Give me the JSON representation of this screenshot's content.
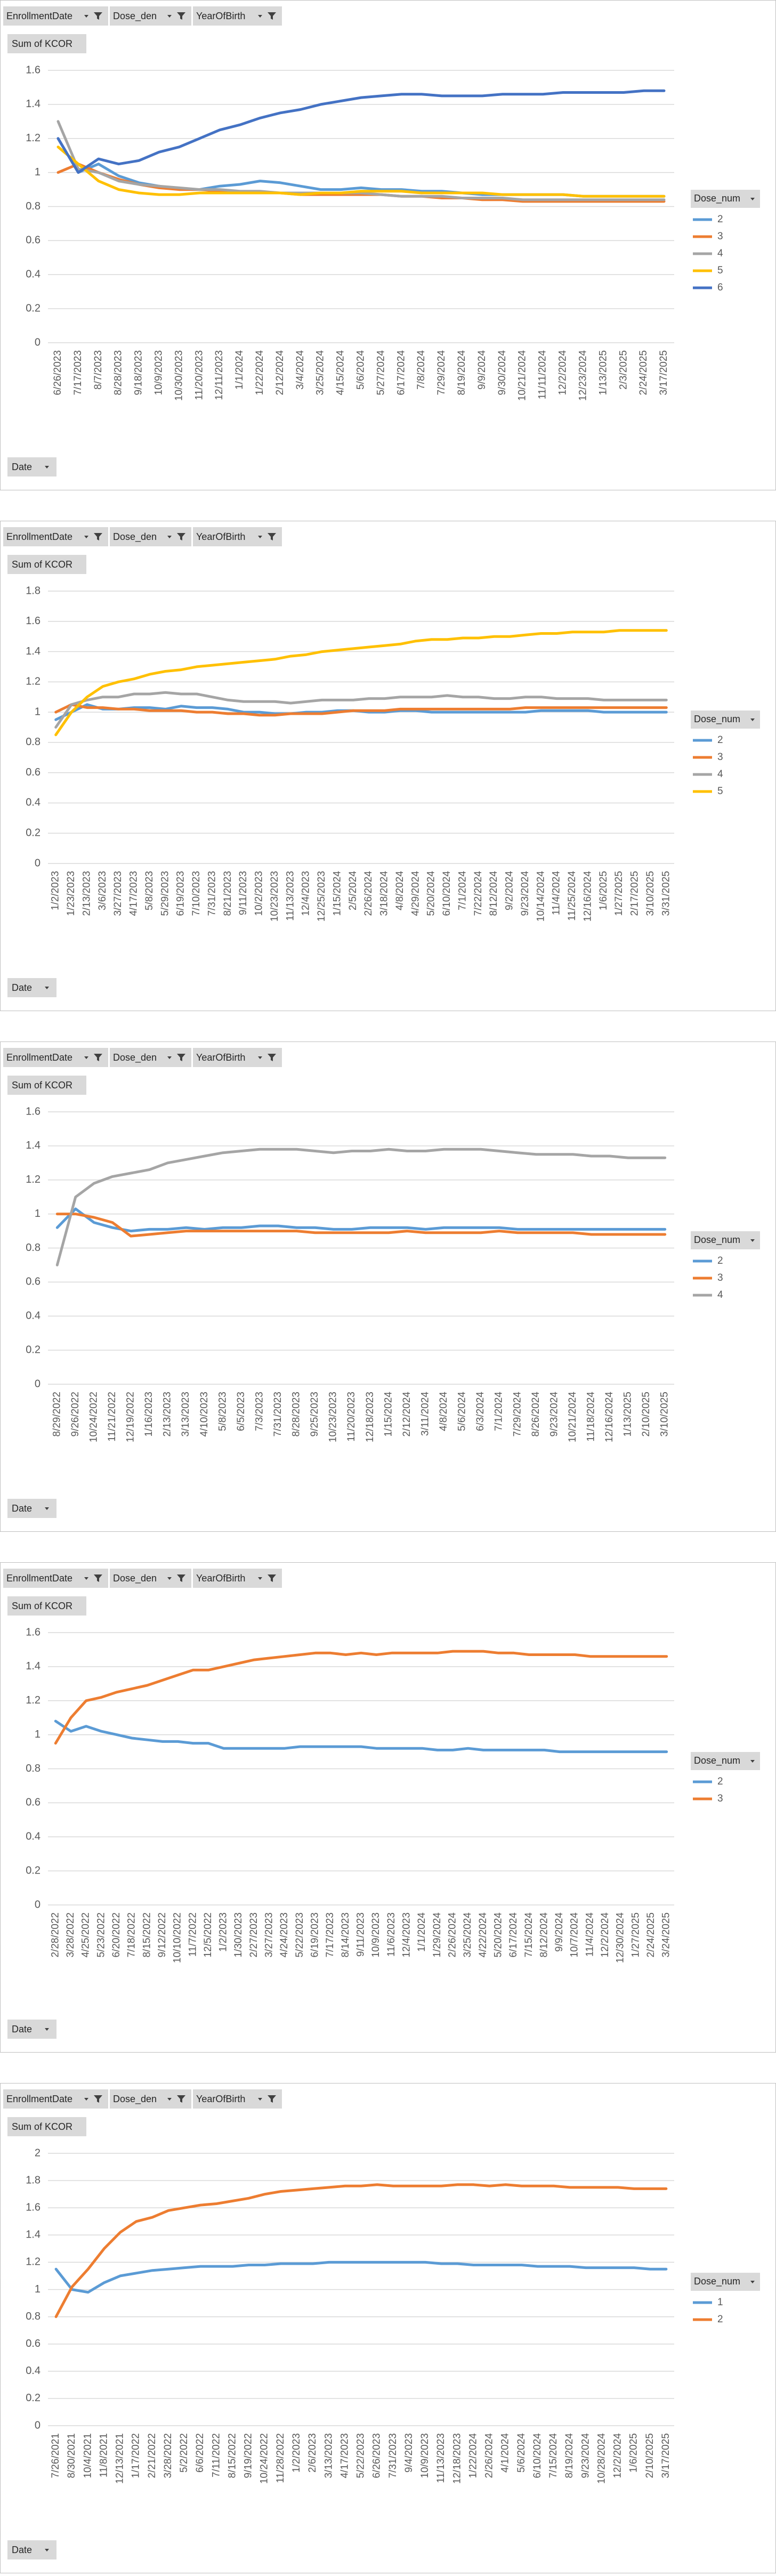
{
  "chart_data": [
    {
      "type": "line",
      "filters": [
        "EnrollmentDate",
        "Dose_den",
        "YearOfBirth"
      ],
      "value_field": "Sum of KCOR",
      "axis_field": "Date",
      "legend_title": "Dose_num",
      "legend": "right",
      "grid": true,
      "categories": [
        "6/26/2023",
        "7/17/2023",
        "8/7/2023",
        "8/28/2023",
        "9/18/2023",
        "10/9/2023",
        "10/30/2023",
        "11/20/2023",
        "12/11/2023",
        "1/1/2024",
        "1/22/2024",
        "2/12/2024",
        "3/4/2024",
        "3/25/2024",
        "4/15/2024",
        "5/6/2024",
        "5/27/2024",
        "6/17/2024",
        "7/8/2024",
        "7/29/2024",
        "8/19/2024",
        "9/9/2024",
        "9/30/2024",
        "10/21/2024",
        "11/11/2024",
        "12/2/2024",
        "12/23/2024",
        "1/13/2025",
        "2/3/2025",
        "2/24/2025",
        "3/17/2025"
      ],
      "ylim": [
        0,
        1.6
      ],
      "yticks": [
        0,
        0.2,
        0.4,
        0.6,
        0.8,
        1,
        1.2,
        1.4,
        1.6
      ],
      "series": [
        {
          "name": "2",
          "color": "#5b9bd5",
          "values": [
            1.2,
            1.0,
            1.05,
            0.98,
            0.94,
            0.92,
            0.9,
            0.9,
            0.92,
            0.93,
            0.95,
            0.94,
            0.92,
            0.9,
            0.9,
            0.91,
            0.9,
            0.9,
            0.89,
            0.89,
            0.88,
            0.87,
            0.87,
            0.87,
            0.87,
            0.87,
            0.86,
            0.86,
            0.86,
            0.86,
            0.86
          ]
        },
        {
          "name": "3",
          "color": "#ed7d31",
          "values": [
            1.0,
            1.05,
            1.0,
            0.96,
            0.93,
            0.91,
            0.9,
            0.9,
            0.89,
            0.88,
            0.88,
            0.88,
            0.87,
            0.87,
            0.87,
            0.87,
            0.87,
            0.86,
            0.86,
            0.85,
            0.85,
            0.84,
            0.84,
            0.83,
            0.83,
            0.83,
            0.83,
            0.83,
            0.83,
            0.83,
            0.83
          ]
        },
        {
          "name": "4",
          "color": "#a5a5a5",
          "values": [
            1.3,
            1.02,
            1.0,
            0.95,
            0.93,
            0.92,
            0.91,
            0.9,
            0.9,
            0.89,
            0.89,
            0.88,
            0.88,
            0.88,
            0.88,
            0.88,
            0.87,
            0.86,
            0.86,
            0.86,
            0.85,
            0.85,
            0.85,
            0.84,
            0.84,
            0.84,
            0.84,
            0.84,
            0.84,
            0.84,
            0.84
          ]
        },
        {
          "name": "5",
          "color": "#ffc000",
          "values": [
            1.15,
            1.05,
            0.95,
            0.9,
            0.88,
            0.87,
            0.87,
            0.88,
            0.88,
            0.88,
            0.88,
            0.88,
            0.87,
            0.88,
            0.88,
            0.89,
            0.89,
            0.89,
            0.88,
            0.88,
            0.88,
            0.88,
            0.87,
            0.87,
            0.87,
            0.87,
            0.86,
            0.86,
            0.86,
            0.86,
            0.86
          ]
        },
        {
          "name": "6",
          "color": "#4472c4",
          "values": [
            1.2,
            1.0,
            1.08,
            1.05,
            1.07,
            1.12,
            1.15,
            1.2,
            1.25,
            1.28,
            1.32,
            1.35,
            1.37,
            1.4,
            1.42,
            1.44,
            1.45,
            1.46,
            1.46,
            1.45,
            1.45,
            1.45,
            1.46,
            1.46,
            1.46,
            1.47,
            1.47,
            1.47,
            1.47,
            1.48,
            1.48
          ]
        }
      ]
    },
    {
      "type": "line",
      "filters": [
        "EnrollmentDate",
        "Dose_den",
        "YearOfBirth"
      ],
      "value_field": "Sum of KCOR",
      "axis_field": "Date",
      "legend_title": "Dose_num",
      "legend": "right",
      "grid": true,
      "categories": [
        "1/2/2023",
        "1/23/2023",
        "2/13/2023",
        "3/6/2023",
        "3/27/2023",
        "4/17/2023",
        "5/8/2023",
        "5/29/2023",
        "6/19/2023",
        "7/10/2023",
        "7/31/2023",
        "8/21/2023",
        "9/11/2023",
        "10/2/2023",
        "10/23/2023",
        "11/13/2023",
        "12/4/2023",
        "12/25/2023",
        "1/15/2024",
        "2/5/2024",
        "2/26/2024",
        "3/18/2024",
        "4/8/2024",
        "4/29/2024",
        "5/20/2024",
        "6/10/2024",
        "7/1/2024",
        "7/22/2024",
        "8/12/2024",
        "9/2/2024",
        "9/23/2024",
        "10/14/2024",
        "11/4/2024",
        "11/25/2024",
        "12/16/2024",
        "1/6/2025",
        "1/27/2025",
        "2/17/2025",
        "3/10/2025",
        "3/31/2025"
      ],
      "ylim": [
        0,
        1.8
      ],
      "yticks": [
        0,
        0.2,
        0.4,
        0.6,
        0.8,
        1,
        1.2,
        1.4,
        1.6,
        1.8
      ],
      "series": [
        {
          "name": "2",
          "color": "#5b9bd5",
          "values": [
            0.95,
            1.0,
            1.05,
            1.02,
            1.02,
            1.03,
            1.03,
            1.02,
            1.04,
            1.03,
            1.03,
            1.02,
            1.0,
            1.0,
            0.99,
            0.99,
            1.0,
            1.0,
            1.01,
            1.01,
            1.0,
            1.0,
            1.01,
            1.01,
            1.0,
            1.0,
            1.0,
            1.0,
            1.0,
            1.0,
            1.0,
            1.01,
            1.01,
            1.01,
            1.01,
            1.0,
            1.0,
            1.0,
            1.0,
            1.0
          ]
        },
        {
          "name": "3",
          "color": "#ed7d31",
          "values": [
            1.0,
            1.05,
            1.03,
            1.03,
            1.02,
            1.02,
            1.01,
            1.01,
            1.01,
            1.0,
            1.0,
            0.99,
            0.99,
            0.98,
            0.98,
            0.99,
            0.99,
            0.99,
            1.0,
            1.01,
            1.01,
            1.01,
            1.02,
            1.02,
            1.02,
            1.02,
            1.02,
            1.02,
            1.02,
            1.02,
            1.03,
            1.03,
            1.03,
            1.03,
            1.03,
            1.03,
            1.03,
            1.03,
            1.03,
            1.03
          ]
        },
        {
          "name": "4",
          "color": "#a5a5a5",
          "values": [
            0.9,
            1.05,
            1.08,
            1.1,
            1.1,
            1.12,
            1.12,
            1.13,
            1.12,
            1.12,
            1.1,
            1.08,
            1.07,
            1.07,
            1.07,
            1.06,
            1.07,
            1.08,
            1.08,
            1.08,
            1.09,
            1.09,
            1.1,
            1.1,
            1.1,
            1.11,
            1.1,
            1.1,
            1.09,
            1.09,
            1.1,
            1.1,
            1.09,
            1.09,
            1.09,
            1.08,
            1.08,
            1.08,
            1.08,
            1.08
          ]
        },
        {
          "name": "5",
          "color": "#ffc000",
          "values": [
            0.85,
            1.0,
            1.1,
            1.17,
            1.2,
            1.22,
            1.25,
            1.27,
            1.28,
            1.3,
            1.31,
            1.32,
            1.33,
            1.34,
            1.35,
            1.37,
            1.38,
            1.4,
            1.41,
            1.42,
            1.43,
            1.44,
            1.45,
            1.47,
            1.48,
            1.48,
            1.49,
            1.49,
            1.5,
            1.5,
            1.51,
            1.52,
            1.52,
            1.53,
            1.53,
            1.53,
            1.54,
            1.54,
            1.54,
            1.54
          ]
        }
      ]
    },
    {
      "type": "line",
      "filters": [
        "EnrollmentDate",
        "Dose_den",
        "YearOfBirth"
      ],
      "value_field": "Sum of KCOR",
      "axis_field": "Date",
      "legend_title": "Dose_num",
      "legend": "right",
      "grid": true,
      "categories": [
        "8/29/2022",
        "9/26/2022",
        "10/24/2022",
        "11/21/2022",
        "12/19/2022",
        "1/16/2023",
        "2/13/2023",
        "3/13/2023",
        "4/10/2023",
        "5/8/2023",
        "6/5/2023",
        "7/3/2023",
        "7/31/2023",
        "8/28/2023",
        "9/25/2023",
        "10/23/2023",
        "11/20/2023",
        "12/18/2023",
        "1/15/2024",
        "2/12/2024",
        "3/11/2024",
        "4/8/2024",
        "5/6/2024",
        "6/3/2024",
        "7/1/2024",
        "7/29/2024",
        "8/26/2024",
        "9/23/2024",
        "10/21/2024",
        "11/18/2024",
        "12/16/2024",
        "1/13/2025",
        "2/10/2025",
        "3/10/2025"
      ],
      "ylim": [
        0,
        1.6
      ],
      "yticks": [
        0,
        0.2,
        0.4,
        0.6,
        0.8,
        1,
        1.2,
        1.4,
        1.6
      ],
      "series": [
        {
          "name": "2",
          "color": "#5b9bd5",
          "values": [
            0.92,
            1.03,
            0.95,
            0.92,
            0.9,
            0.91,
            0.91,
            0.92,
            0.91,
            0.92,
            0.92,
            0.93,
            0.93,
            0.92,
            0.92,
            0.91,
            0.91,
            0.92,
            0.92,
            0.92,
            0.91,
            0.92,
            0.92,
            0.92,
            0.92,
            0.91,
            0.91,
            0.91,
            0.91,
            0.91,
            0.91,
            0.91,
            0.91,
            0.91
          ]
        },
        {
          "name": "3",
          "color": "#ed7d31",
          "values": [
            1.0,
            1.0,
            0.98,
            0.95,
            0.87,
            0.88,
            0.89,
            0.9,
            0.9,
            0.9,
            0.9,
            0.9,
            0.9,
            0.9,
            0.89,
            0.89,
            0.89,
            0.89,
            0.89,
            0.9,
            0.89,
            0.89,
            0.89,
            0.89,
            0.9,
            0.89,
            0.89,
            0.89,
            0.89,
            0.88,
            0.88,
            0.88,
            0.88,
            0.88
          ]
        },
        {
          "name": "4",
          "color": "#a5a5a5",
          "values": [
            0.7,
            1.1,
            1.18,
            1.22,
            1.24,
            1.26,
            1.3,
            1.32,
            1.34,
            1.36,
            1.37,
            1.38,
            1.38,
            1.38,
            1.37,
            1.36,
            1.37,
            1.37,
            1.38,
            1.37,
            1.37,
            1.38,
            1.38,
            1.38,
            1.37,
            1.36,
            1.35,
            1.35,
            1.35,
            1.34,
            1.34,
            1.33,
            1.33,
            1.33
          ]
        }
      ]
    },
    {
      "type": "line",
      "filters": [
        "EnrollmentDate",
        "Dose_den",
        "YearOfBirth"
      ],
      "value_field": "Sum of KCOR",
      "axis_field": "Date",
      "legend_title": "Dose_num",
      "legend": "right",
      "grid": true,
      "categories": [
        "2/28/2022",
        "3/28/2022",
        "4/25/2022",
        "5/23/2022",
        "6/20/2022",
        "7/18/2022",
        "8/15/2022",
        "9/12/2022",
        "10/10/2022",
        "11/7/2022",
        "12/5/2022",
        "1/2/2023",
        "1/30/2023",
        "2/27/2023",
        "3/27/2023",
        "4/24/2023",
        "5/22/2023",
        "6/19/2023",
        "7/17/2023",
        "8/14/2023",
        "9/11/2023",
        "10/9/2023",
        "11/6/2023",
        "12/4/2023",
        "1/1/2024",
        "1/29/2024",
        "2/26/2024",
        "3/25/2024",
        "4/22/2024",
        "5/20/2024",
        "6/17/2024",
        "7/15/2024",
        "8/12/2024",
        "9/9/2024",
        "10/7/2024",
        "11/4/2024",
        "12/2/2024",
        "12/30/2024",
        "1/27/2025",
        "2/24/2025",
        "3/24/2025"
      ],
      "ylim": [
        0,
        1.6
      ],
      "yticks": [
        0,
        0.2,
        0.4,
        0.6,
        0.8,
        1,
        1.2,
        1.4,
        1.6
      ],
      "series": [
        {
          "name": "2",
          "color": "#5b9bd5",
          "values": [
            1.08,
            1.02,
            1.05,
            1.02,
            1.0,
            0.98,
            0.97,
            0.96,
            0.96,
            0.95,
            0.95,
            0.92,
            0.92,
            0.92,
            0.92,
            0.92,
            0.93,
            0.93,
            0.93,
            0.93,
            0.93,
            0.92,
            0.92,
            0.92,
            0.92,
            0.91,
            0.91,
            0.92,
            0.91,
            0.91,
            0.91,
            0.91,
            0.91,
            0.9,
            0.9,
            0.9,
            0.9,
            0.9,
            0.9,
            0.9,
            0.9
          ]
        },
        {
          "name": "3",
          "color": "#ed7d31",
          "values": [
            0.95,
            1.1,
            1.2,
            1.22,
            1.25,
            1.27,
            1.29,
            1.32,
            1.35,
            1.38,
            1.38,
            1.4,
            1.42,
            1.44,
            1.45,
            1.46,
            1.47,
            1.48,
            1.48,
            1.47,
            1.48,
            1.47,
            1.48,
            1.48,
            1.48,
            1.48,
            1.49,
            1.49,
            1.49,
            1.48,
            1.48,
            1.47,
            1.47,
            1.47,
            1.47,
            1.46,
            1.46,
            1.46,
            1.46,
            1.46,
            1.46
          ]
        }
      ]
    },
    {
      "type": "line",
      "filters": [
        "EnrollmentDate",
        "Dose_den",
        "YearOfBirth"
      ],
      "value_field": "Sum of KCOR",
      "axis_field": "Date",
      "legend_title": "Dose_num",
      "legend": "right",
      "grid": true,
      "categories": [
        "7/26/2021",
        "8/30/2021",
        "10/4/2021",
        "11/8/2021",
        "12/13/2021",
        "1/17/2022",
        "2/21/2022",
        "3/28/2022",
        "5/2/2022",
        "6/6/2022",
        "7/11/2022",
        "8/15/2022",
        "9/19/2022",
        "10/24/2022",
        "11/28/2022",
        "1/2/2023",
        "2/6/2023",
        "3/13/2023",
        "4/17/2023",
        "5/22/2023",
        "6/26/2023",
        "7/31/2023",
        "9/4/2023",
        "10/9/2023",
        "11/13/2023",
        "12/18/2023",
        "1/22/2024",
        "2/26/2024",
        "4/1/2024",
        "5/6/2024",
        "6/10/2024",
        "7/15/2024",
        "8/19/2024",
        "9/23/2024",
        "10/28/2024",
        "12/2/2024",
        "1/6/2025",
        "2/10/2025",
        "3/17/2025"
      ],
      "ylim": [
        0,
        2
      ],
      "yticks": [
        0,
        0.2,
        0.4,
        0.6,
        0.8,
        1,
        1.2,
        1.4,
        1.6,
        1.8,
        2
      ],
      "series": [
        {
          "name": "1",
          "color": "#5b9bd5",
          "values": [
            1.15,
            1.0,
            0.98,
            1.05,
            1.1,
            1.12,
            1.14,
            1.15,
            1.16,
            1.17,
            1.17,
            1.17,
            1.18,
            1.18,
            1.19,
            1.19,
            1.19,
            1.2,
            1.2,
            1.2,
            1.2,
            1.2,
            1.2,
            1.2,
            1.19,
            1.19,
            1.18,
            1.18,
            1.18,
            1.18,
            1.17,
            1.17,
            1.17,
            1.16,
            1.16,
            1.16,
            1.16,
            1.15,
            1.15
          ]
        },
        {
          "name": "2",
          "color": "#ed7d31",
          "values": [
            0.8,
            1.02,
            1.15,
            1.3,
            1.42,
            1.5,
            1.53,
            1.58,
            1.6,
            1.62,
            1.63,
            1.65,
            1.67,
            1.7,
            1.72,
            1.73,
            1.74,
            1.75,
            1.76,
            1.76,
            1.77,
            1.76,
            1.76,
            1.76,
            1.76,
            1.77,
            1.77,
            1.76,
            1.77,
            1.76,
            1.76,
            1.76,
            1.75,
            1.75,
            1.75,
            1.75,
            1.74,
            1.74,
            1.74
          ]
        }
      ]
    }
  ]
}
